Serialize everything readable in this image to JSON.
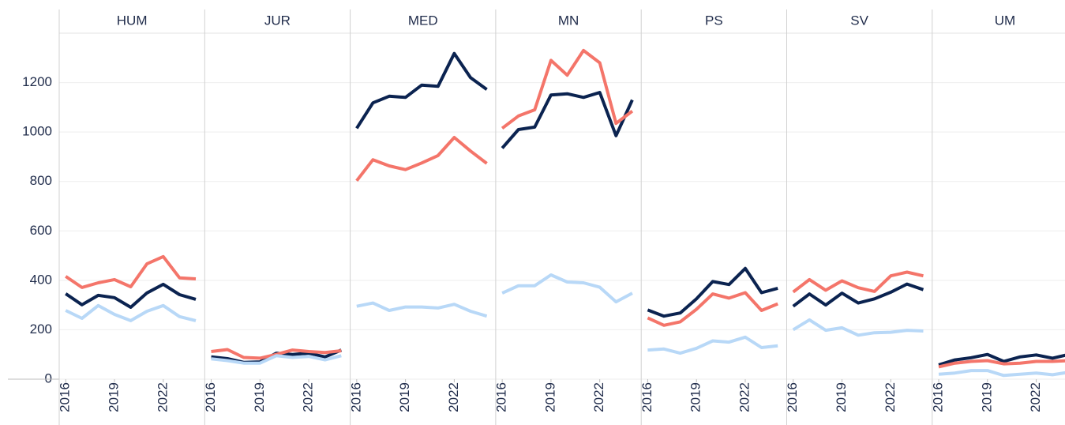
{
  "chart_data": {
    "type": "line",
    "x": [
      2016,
      2017,
      2018,
      2019,
      2020,
      2021,
      2022,
      2023,
      2024
    ],
    "xlim": [
      2015.6,
      2024.55
    ],
    "xticks": [
      2016,
      2019,
      2022
    ],
    "ylim": [
      0,
      1400
    ],
    "yticks": [
      0,
      200,
      400,
      600,
      800,
      1000,
      1200
    ],
    "grid": true,
    "panels": [
      {
        "title": "HUM",
        "series": [
          {
            "color": "#0b2350",
            "values": [
              346,
              301,
              339,
              330,
              291,
              349,
              384,
              342,
              323
            ]
          },
          {
            "color": "#f4756a",
            "values": [
              416,
              371,
              390,
              403,
              374,
              467,
              496,
              410,
              406
            ]
          },
          {
            "color": "#b8d8f7",
            "values": [
              278,
              246,
              298,
              262,
              237,
              275,
              298,
              253,
              237
            ]
          }
        ]
      },
      {
        "title": "JUR",
        "series": [
          {
            "color": "#0b2350",
            "values": [
              90,
              83,
              68,
              70,
              105,
              100,
              105,
              90,
              118
            ]
          },
          {
            "color": "#f4756a",
            "values": [
              112,
              120,
              88,
              85,
              100,
              118,
              112,
              108,
              115
            ]
          },
          {
            "color": "#b8d8f7",
            "values": [
              82,
              75,
              65,
              65,
              95,
              88,
              92,
              78,
              95
            ]
          }
        ]
      },
      {
        "title": "MED",
        "series": [
          {
            "color": "#0b2350",
            "values": [
              1015,
              1118,
              1145,
              1140,
              1190,
              1185,
              1318,
              1220,
              1172
            ]
          },
          {
            "color": "#f4756a",
            "values": [
              803,
              888,
              863,
              848,
              875,
              905,
              978,
              923,
              873
            ]
          },
          {
            "color": "#b8d8f7",
            "values": [
              295,
              308,
              278,
              292,
              292,
              288,
              303,
              275,
              255
            ]
          }
        ]
      },
      {
        "title": "MN",
        "series": [
          {
            "color": "#0b2350",
            "values": [
              935,
              1010,
              1020,
              1150,
              1155,
              1140,
              1160,
              985,
              1130
            ]
          },
          {
            "color": "#f4756a",
            "values": [
              1015,
              1065,
              1090,
              1290,
              1230,
              1330,
              1280,
              1035,
              1085
            ]
          },
          {
            "color": "#b8d8f7",
            "values": [
              348,
              378,
              378,
              422,
              393,
              390,
              372,
              313,
              348
            ]
          }
        ]
      },
      {
        "title": "PS",
        "series": [
          {
            "color": "#0b2350",
            "values": [
              280,
              255,
              268,
              325,
              395,
              383,
              448,
              350,
              368
            ]
          },
          {
            "color": "#f4756a",
            "values": [
              248,
              218,
              232,
              283,
              345,
              328,
              350,
              278,
              305
            ]
          },
          {
            "color": "#b8d8f7",
            "values": [
              118,
              122,
              105,
              125,
              155,
              150,
              170,
              128,
              135
            ]
          }
        ]
      },
      {
        "title": "SV",
        "series": [
          {
            "color": "#0b2350",
            "values": [
              295,
              345,
              300,
              348,
              308,
              325,
              352,
              385,
              362
            ]
          },
          {
            "color": "#f4756a",
            "values": [
              353,
              403,
              360,
              398,
              370,
              355,
              418,
              433,
              418
            ]
          },
          {
            "color": "#b8d8f7",
            "values": [
              200,
              240,
              198,
              208,
              178,
              188,
              190,
              198,
              195
            ]
          }
        ]
      },
      {
        "title": "UM",
        "series": [
          {
            "color": "#0b2350",
            "values": [
              58,
              78,
              87,
              100,
              72,
              90,
              98,
              85,
              100
            ]
          },
          {
            "color": "#f4756a",
            "values": [
              50,
              65,
              72,
              75,
              62,
              65,
              72,
              72,
              75
            ]
          },
          {
            "color": "#b8d8f7",
            "values": [
              20,
              25,
              35,
              35,
              15,
              20,
              25,
              18,
              28
            ]
          }
        ]
      }
    ]
  }
}
